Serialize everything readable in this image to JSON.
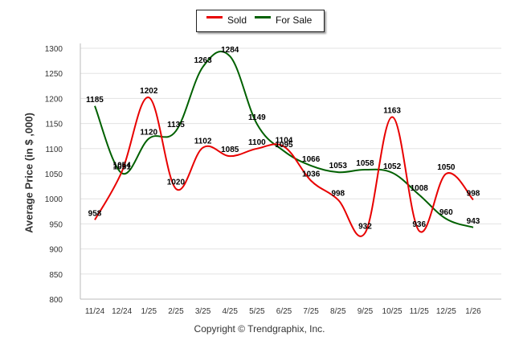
{
  "chart_data": {
    "type": "line",
    "title": "",
    "xlabel": "",
    "ylabel": "Average Price (in $ ,000)",
    "categories": [
      "11/24",
      "12/24",
      "1/25",
      "2/25",
      "3/25",
      "4/25",
      "5/25",
      "6/25",
      "7/25",
      "8/25",
      "9/25",
      "10/25",
      "11/25",
      "12/25",
      "1/26"
    ],
    "ylim": [
      800,
      1300
    ],
    "yticks": [
      800,
      850,
      900,
      950,
      1000,
      1050,
      1100,
      1150,
      1200,
      1250,
      1300
    ],
    "grid": true,
    "legend_position": "top-center",
    "series": [
      {
        "name": "Sold",
        "color": "#e80000",
        "values": [
          958,
          1054,
          1202,
          1020,
          1102,
          1085,
          1100,
          1104,
          1036,
          998,
          932,
          1163,
          936,
          1050,
          998
        ]
      },
      {
        "name": "For Sale",
        "color": "#006000",
        "values": [
          1185,
          1051,
          1120,
          1135,
          1263,
          1284,
          1149,
          1095,
          1066,
          1053,
          1058,
          1052,
          1008,
          960,
          943
        ]
      }
    ]
  },
  "legend": {
    "sold": "Sold",
    "for_sale": "For Sale"
  },
  "footer": {
    "copyright": "Copyright © Trendgraphix, Inc."
  }
}
